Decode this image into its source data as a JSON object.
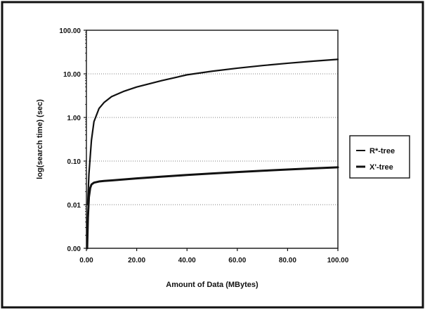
{
  "chart_data": {
    "type": "line",
    "title": "",
    "xlabel": "Amount of Data (MBytes)",
    "ylabel": "log(search time) (sec)",
    "x_scale": "linear",
    "y_scale": "log",
    "xlim": [
      0,
      100
    ],
    "ylim": [
      0.001,
      100
    ],
    "x_ticks": [
      0,
      20,
      40,
      60,
      80,
      100
    ],
    "x_tick_labels": [
      "0.00",
      "20.00",
      "40.00",
      "60.00",
      "80.00",
      "100.00"
    ],
    "y_ticks": [
      0.001,
      0.01,
      0.1,
      1,
      10,
      100
    ],
    "y_tick_labels": [
      "0.00",
      "0.01",
      "0.10",
      "1.00",
      "10.00",
      "100.00"
    ],
    "grid": "horizontal",
    "legend_position": "right",
    "colors": {
      "series": "#111111",
      "frame": "#111111",
      "grid": "#555555"
    },
    "series": [
      {
        "name": "R*-tree",
        "x": [
          0.5,
          1,
          2,
          3,
          5,
          7,
          10,
          15,
          20,
          30,
          40,
          50,
          60,
          70,
          80,
          90,
          100
        ],
        "y": [
          0.01,
          0.05,
          0.3,
          0.8,
          1.6,
          2.2,
          3.0,
          4.0,
          5.0,
          7.0,
          9.5,
          11.5,
          13.5,
          15.5,
          17.5,
          19.5,
          21.5
        ]
      },
      {
        "name": "X'-tree",
        "x": [
          0.3,
          0.6,
          1,
          1.5,
          2,
          3,
          5,
          7,
          10,
          20,
          30,
          40,
          50,
          60,
          70,
          80,
          90,
          100
        ],
        "y": [
          0.001,
          0.005,
          0.015,
          0.024,
          0.029,
          0.032,
          0.034,
          0.035,
          0.036,
          0.04,
          0.044,
          0.048,
          0.052,
          0.056,
          0.06,
          0.064,
          0.068,
          0.072
        ]
      }
    ]
  }
}
